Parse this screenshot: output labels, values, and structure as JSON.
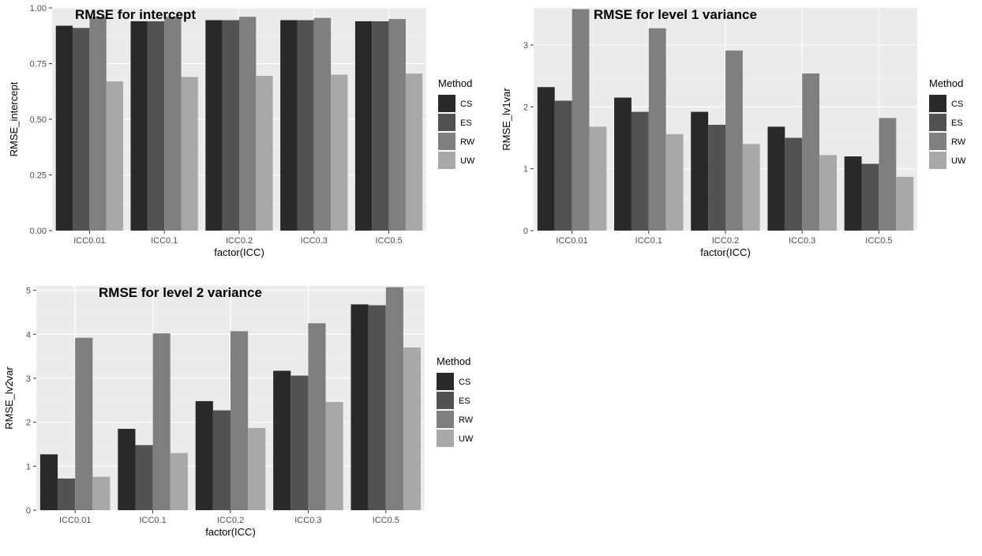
{
  "legend": {
    "title": "Method",
    "entries": [
      "CS",
      "ES",
      "RW",
      "UW"
    ],
    "colors": [
      "#292929",
      "#525252",
      "#7f7f7f",
      "#a8a8a8"
    ]
  },
  "chart_data": [
    {
      "id": "intercept",
      "type": "bar",
      "title": "RMSE for intercept",
      "xlabel": "factor(ICC)",
      "ylabel": "RMSE_intercept",
      "categories": [
        "ICC0.01",
        "ICC0.1",
        "ICC0.2",
        "ICC0.3",
        "ICC0.5"
      ],
      "ylim": [
        0,
        1.0
      ],
      "yticks": [
        0,
        0.25,
        0.5,
        0.75,
        1.0
      ],
      "ytick_labels": [
        "0.00",
        "0.25",
        "0.50",
        "0.75",
        "1.00"
      ],
      "series": [
        {
          "name": "CS",
          "values": [
            0.92,
            0.94,
            0.945,
            0.945,
            0.94
          ]
        },
        {
          "name": "ES",
          "values": [
            0.91,
            0.94,
            0.945,
            0.945,
            0.94
          ]
        },
        {
          "name": "RW",
          "values": [
            0.96,
            0.96,
            0.96,
            0.955,
            0.95
          ]
        },
        {
          "name": "UW",
          "values": [
            0.67,
            0.69,
            0.695,
            0.7,
            0.705
          ]
        }
      ],
      "grid": true,
      "legend_position": "right"
    },
    {
      "id": "lv1",
      "type": "bar",
      "title": "RMSE for level 1 variance",
      "xlabel": "factor(ICC)",
      "ylabel": "RMSE_lv1var",
      "categories": [
        "ICC0.01",
        "ICC0.1",
        "ICC0.2",
        "ICC0.3",
        "ICC0.5"
      ],
      "ylim": [
        0,
        3.6
      ],
      "yticks": [
        0,
        1,
        2,
        3
      ],
      "ytick_labels": [
        "0",
        "1",
        "2",
        "3"
      ],
      "series": [
        {
          "name": "CS",
          "values": [
            2.32,
            2.15,
            1.92,
            1.68,
            1.2
          ]
        },
        {
          "name": "ES",
          "values": [
            2.1,
            1.92,
            1.71,
            1.5,
            1.08
          ]
        },
        {
          "name": "RW",
          "values": [
            3.58,
            3.27,
            2.91,
            2.54,
            1.82
          ]
        },
        {
          "name": "UW",
          "values": [
            1.68,
            1.56,
            1.4,
            1.22,
            0.87
          ]
        }
      ],
      "grid": true,
      "legend_position": "right"
    },
    {
      "id": "lv2",
      "type": "bar",
      "title": "RMSE for level 2 variance",
      "xlabel": "factor(ICC)",
      "ylabel": "RMSE_lv2var",
      "categories": [
        "ICC0.01",
        "ICC0.1",
        "ICC0.2",
        "ICC0.3",
        "ICC0.5"
      ],
      "ylim": [
        0,
        5.1
      ],
      "yticks": [
        0,
        1,
        2,
        3,
        4,
        5
      ],
      "ytick_labels": [
        "0",
        "1",
        "2",
        "3",
        "4",
        "5"
      ],
      "series": [
        {
          "name": "CS",
          "values": [
            1.27,
            1.85,
            2.48,
            3.17,
            4.68
          ]
        },
        {
          "name": "ES",
          "values": [
            0.72,
            1.48,
            2.27,
            3.06,
            4.66
          ]
        },
        {
          "name": "RW",
          "values": [
            3.92,
            4.02,
            4.07,
            4.25,
            5.07
          ]
        },
        {
          "name": "UW",
          "values": [
            0.76,
            1.3,
            1.87,
            2.46,
            3.7
          ]
        }
      ],
      "grid": true,
      "legend_position": "right"
    }
  ]
}
